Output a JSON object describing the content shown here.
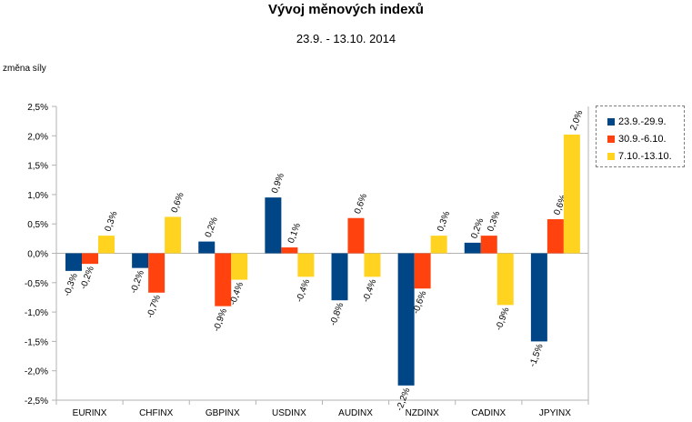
{
  "chart_data": {
    "type": "bar",
    "title": "Vývoj měnových indexů",
    "subtitle": "23.9. - 13.10. 2014",
    "ylabel": "změna síly",
    "xlabel": "",
    "ylim": [
      -2.5,
      2.5
    ],
    "yticks": [
      -2.5,
      -2.0,
      -1.5,
      -1.0,
      -0.5,
      0.0,
      0.5,
      1.0,
      1.5,
      2.0,
      2.5
    ],
    "ytick_labels": [
      "-2,5%",
      "-2,0%",
      "-1,5%",
      "-1,0%",
      "-0,5%",
      "0,0%",
      "0,5%",
      "1,0%",
      "1,5%",
      "2,0%",
      "2,5%"
    ],
    "categories": [
      "EURINX",
      "CHFINX",
      "GBPINX",
      "USDINX",
      "AUDINX",
      "NZDINX",
      "CADINX",
      "JPYINX"
    ],
    "series": [
      {
        "name": "23.9.-29.9.",
        "color": "#004586",
        "values": [
          -0.3,
          -0.25,
          0.2,
          0.95,
          -0.8,
          -2.25,
          0.18,
          -1.5
        ],
        "labels": [
          "-0,3%",
          "-0,2%",
          "0,2%",
          "0,9%",
          "-0,8%",
          "-2,2%",
          "0,2%",
          "-1,5%"
        ]
      },
      {
        "name": "30.9.-6.10.",
        "color": "#ff420e",
        "values": [
          -0.18,
          -0.67,
          -0.9,
          0.1,
          0.6,
          -0.6,
          0.3,
          0.58
        ],
        "labels": [
          "-0,2%",
          "-0,7%",
          "-0,9%",
          "0,1%",
          "0,6%",
          "-0,6%",
          "0,3%",
          "0,6%"
        ]
      },
      {
        "name": "7.10.-13.10.",
        "color": "#ffd320",
        "values": [
          0.3,
          0.62,
          -0.45,
          -0.4,
          -0.4,
          0.3,
          -0.88,
          2.02
        ],
        "labels": [
          "0,3%",
          "0,6%",
          "-0,4%",
          "-0,4%",
          "-0,4%",
          "0,3%",
          "-0,9%",
          "2,0%"
        ]
      }
    ],
    "grid": false,
    "legend_position": "right"
  }
}
